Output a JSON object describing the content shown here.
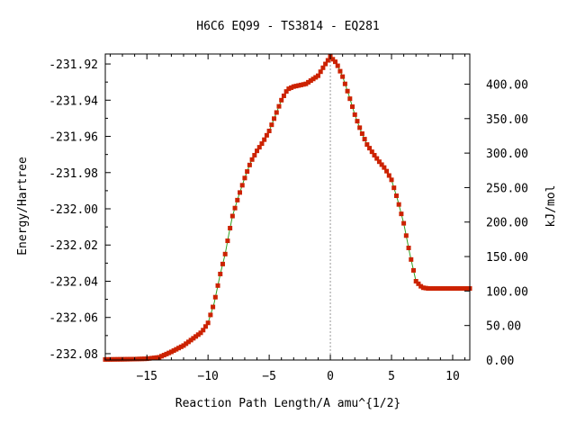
{
  "chart_data": {
    "type": "line",
    "title": "H6C6   EQ99 - TS3814 - EQ281",
    "xlabel": "Reaction Path Length/A amu^{1/2}",
    "ylabel": "Energy/Hartree",
    "y2label": "kJ/mol",
    "xlim": [
      -18.4,
      11.4
    ],
    "ylim": [
      -232.0835,
      -231.9145
    ],
    "y2lim": [
      0.0,
      443.7
    ],
    "xticks": [
      -15,
      -10,
      -5,
      0,
      5,
      10
    ],
    "xtick_labels": [
      "−15",
      "−10",
      "−5",
      "0",
      "5",
      "10"
    ],
    "yticks": [
      -231.92,
      -231.94,
      -231.96,
      -231.98,
      -232.0,
      -232.02,
      -232.04,
      -232.06,
      -232.08
    ],
    "ytick_labels": [
      "-231.92",
      "-231.94",
      "-231.96",
      "-231.98",
      "-232.00",
      "-232.02",
      "-232.04",
      "-232.06",
      "-232.08"
    ],
    "y2ticks": [
      0,
      50,
      100,
      150,
      200,
      250,
      300,
      350,
      400
    ],
    "y2tick_labels": [
      "0.00",
      "50.00",
      "100.00",
      "150.00",
      "200.00",
      "250.00",
      "300.00",
      "350.00",
      "400.00"
    ],
    "ts_x": 0,
    "grid": false,
    "colors": {
      "line": "#2e9e1e",
      "marker": "#cc2200",
      "ts_line": "#999999"
    },
    "series": [
      {
        "x": [
          -18.4,
          -17.0,
          -16.0,
          -15.0,
          -14.0,
          -13.0,
          -12.0,
          -11.0,
          -10.5,
          -10.0,
          -9.5,
          -9.0,
          -8.6,
          -8.3,
          -8.0,
          -7.5,
          -7.0,
          -6.5,
          -6.0,
          -5.5,
          -5.0,
          -4.5,
          -4.0,
          -3.5,
          -3.0,
          -2.0,
          -1.0,
          -0.5,
          0.0,
          0.5,
          1.0,
          1.5,
          2.0,
          2.5,
          3.0,
          3.5,
          4.0,
          4.5,
          5.0,
          5.5,
          6.0,
          6.5,
          7.0,
          7.5,
          8.0,
          9.0,
          10.0,
          11.4
        ],
        "y": [
          -232.0832,
          -232.0831,
          -232.083,
          -232.0828,
          -232.082,
          -232.079,
          -232.0755,
          -232.0705,
          -232.068,
          -232.063,
          -232.052,
          -232.036,
          -232.025,
          -232.014,
          -232.004,
          -231.993,
          -231.983,
          -231.974,
          -231.968,
          -231.963,
          -231.957,
          -231.9485,
          -231.94,
          -231.934,
          -231.9325,
          -231.931,
          -231.9265,
          -231.921,
          -231.916,
          -231.9195,
          -231.927,
          -231.937,
          -231.948,
          -231.957,
          -231.9645,
          -231.9695,
          -231.974,
          -231.978,
          -231.984,
          -231.995,
          -232.008,
          -232.025,
          -232.04,
          -232.0435,
          -232.044,
          -232.044,
          -232.044,
          -232.044
        ]
      }
    ]
  }
}
